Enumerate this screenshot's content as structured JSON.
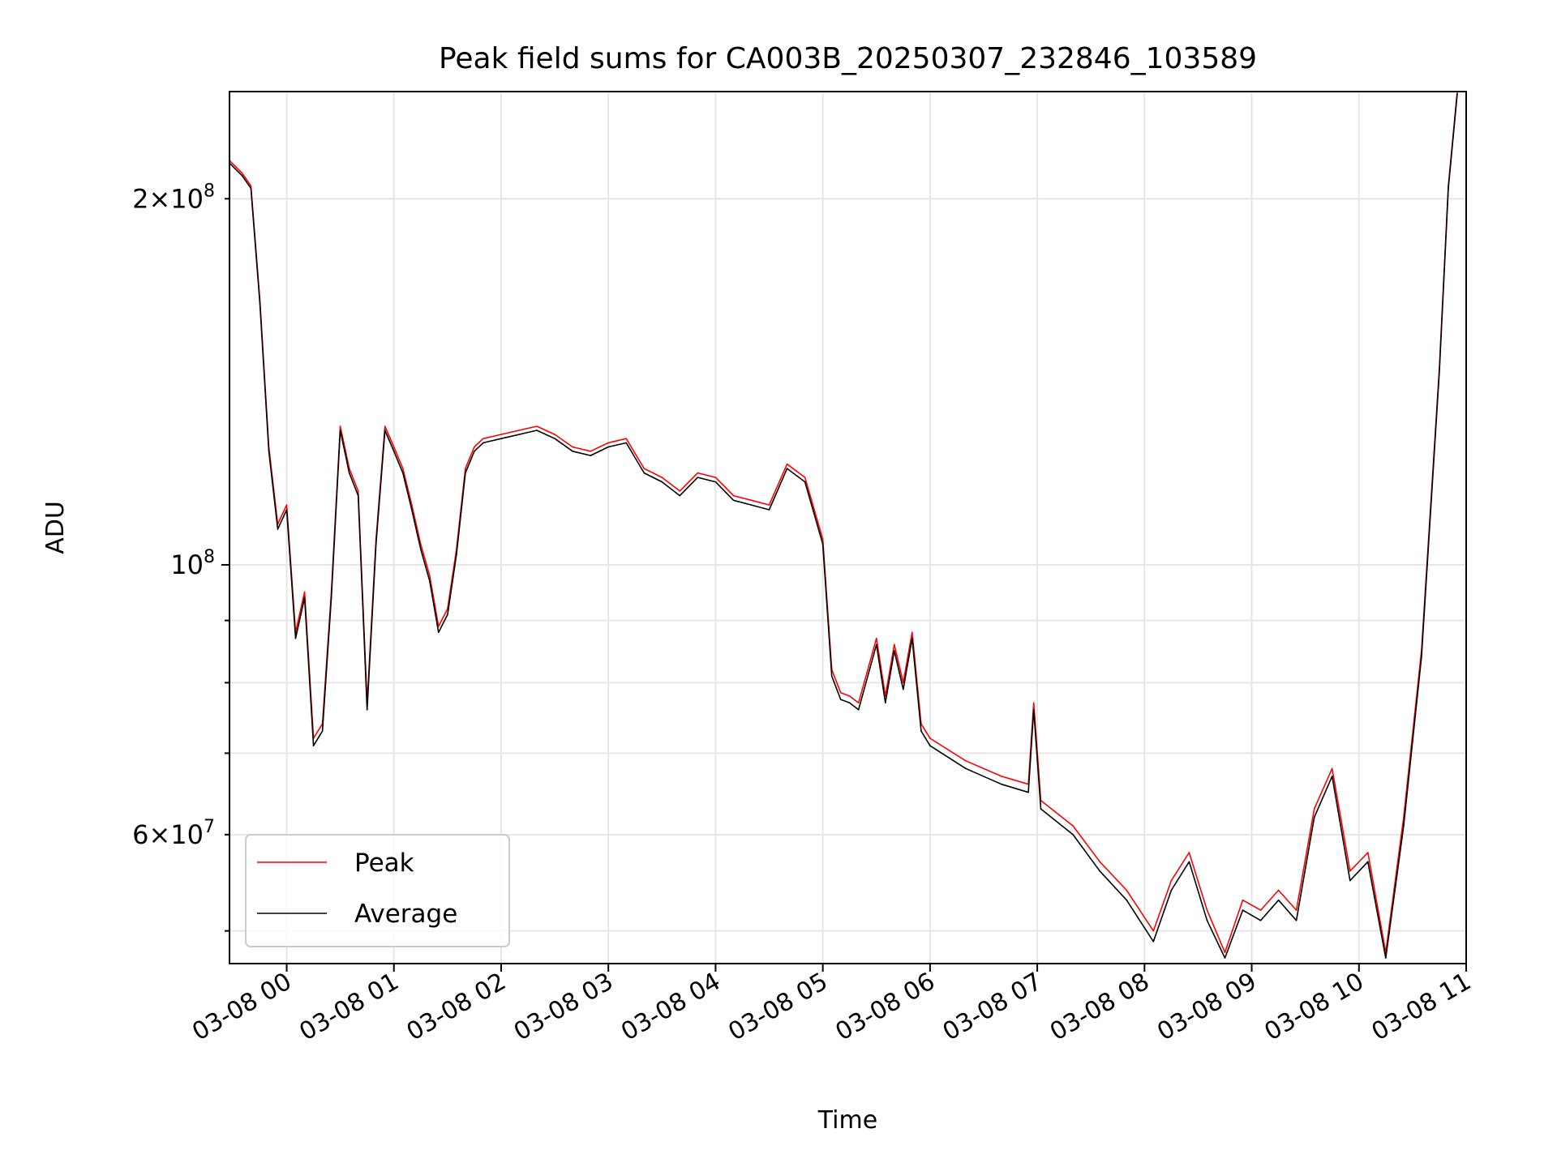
{
  "chart_data": {
    "type": "line",
    "title": "Peak field sums for CA003B_20250307_232846_103589",
    "xlabel": "Time",
    "ylabel": "ADU",
    "yscale": "log",
    "grid": true,
    "legend_position": "lower-left",
    "xlim": [
      "2025-03-07 23:28",
      "2025-03-08 11:00"
    ],
    "ylim": [
      47000000,
      245000000
    ],
    "x_ticks": [
      "03-08 00",
      "03-08 01",
      "03-08 02",
      "03-08 03",
      "03-08 04",
      "03-08 05",
      "03-08 06",
      "03-08 07",
      "03-08 08",
      "03-08 09",
      "03-08 10",
      "03-08 11"
    ],
    "y_tick_labels": [
      {
        "value": 200000000,
        "mantissa": "2",
        "exponent": "8"
      },
      {
        "value": 100000000,
        "mantissa": "",
        "exponent": "8"
      },
      {
        "value": 60000000,
        "mantissa": "6",
        "exponent": "7"
      }
    ],
    "series": [
      {
        "name": "Peak",
        "color": "#ff0000",
        "x": [
          "2025-03-07 23:28",
          "2025-03-07 23:35",
          "2025-03-07 23:40",
          "2025-03-07 23:45",
          "2025-03-07 23:50",
          "2025-03-07 23:55",
          "2025-03-08 00:00",
          "2025-03-08 00:05",
          "2025-03-08 00:10",
          "2025-03-08 00:15",
          "2025-03-08 00:20",
          "2025-03-08 00:25",
          "2025-03-08 00:30",
          "2025-03-08 00:35",
          "2025-03-08 00:40",
          "2025-03-08 00:45",
          "2025-03-08 00:50",
          "2025-03-08 00:55",
          "2025-03-08 01:00",
          "2025-03-08 01:05",
          "2025-03-08 01:10",
          "2025-03-08 01:15",
          "2025-03-08 01:20",
          "2025-03-08 01:25",
          "2025-03-08 01:30",
          "2025-03-08 01:35",
          "2025-03-08 01:40",
          "2025-03-08 01:45",
          "2025-03-08 01:50",
          "2025-03-08 02:00",
          "2025-03-08 02:10",
          "2025-03-08 02:20",
          "2025-03-08 02:30",
          "2025-03-08 02:40",
          "2025-03-08 02:50",
          "2025-03-08 03:00",
          "2025-03-08 03:10",
          "2025-03-08 03:20",
          "2025-03-08 03:30",
          "2025-03-08 03:40",
          "2025-03-08 03:50",
          "2025-03-08 04:00",
          "2025-03-08 04:10",
          "2025-03-08 04:20",
          "2025-03-08 04:30",
          "2025-03-08 04:40",
          "2025-03-08 04:50",
          "2025-03-08 05:00",
          "2025-03-08 05:05",
          "2025-03-08 05:10",
          "2025-03-08 05:15",
          "2025-03-08 05:20",
          "2025-03-08 05:30",
          "2025-03-08 05:35",
          "2025-03-08 05:40",
          "2025-03-08 05:45",
          "2025-03-08 05:50",
          "2025-03-08 05:55",
          "2025-03-08 06:00",
          "2025-03-08 06:20",
          "2025-03-08 06:40",
          "2025-03-08 06:55",
          "2025-03-08 06:58",
          "2025-03-08 07:02",
          "2025-03-08 07:20",
          "2025-03-08 07:35",
          "2025-03-08 07:50",
          "2025-03-08 08:05",
          "2025-03-08 08:15",
          "2025-03-08 08:25",
          "2025-03-08 08:35",
          "2025-03-08 08:45",
          "2025-03-08 08:55",
          "2025-03-08 09:05",
          "2025-03-08 09:15",
          "2025-03-08 09:25",
          "2025-03-08 09:35",
          "2025-03-08 09:45",
          "2025-03-08 09:55",
          "2025-03-08 10:05",
          "2025-03-08 10:15",
          "2025-03-08 10:25",
          "2025-03-08 10:35",
          "2025-03-08 10:45",
          "2025-03-08 10:50",
          "2025-03-08 10:55"
        ],
        "values": [
          215000000,
          210000000,
          205000000,
          165000000,
          125000000,
          108000000,
          112000000,
          88000000,
          95000000,
          72000000,
          74000000,
          95000000,
          130000000,
          120000000,
          115000000,
          77000000,
          105000000,
          130000000,
          125000000,
          120000000,
          112000000,
          104000000,
          98000000,
          89000000,
          92000000,
          103000000,
          120000000,
          125000000,
          127000000,
          128000000,
          129000000,
          130000000,
          128000000,
          125000000,
          124000000,
          126000000,
          127000000,
          120000000,
          118000000,
          115000000,
          119000000,
          118000000,
          114000000,
          113000000,
          112000000,
          121000000,
          118000000,
          105000000,
          82000000,
          78500000,
          78000000,
          77000000,
          87000000,
          78000000,
          86000000,
          80000000,
          88000000,
          74000000,
          72000000,
          69000000,
          67000000,
          66000000,
          77000000,
          64000000,
          61000000,
          57000000,
          54000000,
          50000000,
          55000000,
          58000000,
          52000000,
          48000000,
          53000000,
          52000000,
          54000000,
          52000000,
          63000000,
          68000000,
          56000000,
          58000000,
          48000000,
          62000000,
          85000000,
          145000000,
          205000000,
          245000000
        ]
      },
      {
        "name": "Average",
        "color": "#000000",
        "x": [
          "2025-03-07 23:28",
          "2025-03-07 23:35",
          "2025-03-07 23:40",
          "2025-03-07 23:45",
          "2025-03-07 23:50",
          "2025-03-07 23:55",
          "2025-03-08 00:00",
          "2025-03-08 00:05",
          "2025-03-08 00:10",
          "2025-03-08 00:15",
          "2025-03-08 00:20",
          "2025-03-08 00:25",
          "2025-03-08 00:30",
          "2025-03-08 00:35",
          "2025-03-08 00:40",
          "2025-03-08 00:45",
          "2025-03-08 00:50",
          "2025-03-08 00:55",
          "2025-03-08 01:00",
          "2025-03-08 01:05",
          "2025-03-08 01:10",
          "2025-03-08 01:15",
          "2025-03-08 01:20",
          "2025-03-08 01:25",
          "2025-03-08 01:30",
          "2025-03-08 01:35",
          "2025-03-08 01:40",
          "2025-03-08 01:45",
          "2025-03-08 01:50",
          "2025-03-08 02:00",
          "2025-03-08 02:10",
          "2025-03-08 02:20",
          "2025-03-08 02:30",
          "2025-03-08 02:40",
          "2025-03-08 02:50",
          "2025-03-08 03:00",
          "2025-03-08 03:10",
          "2025-03-08 03:20",
          "2025-03-08 03:30",
          "2025-03-08 03:40",
          "2025-03-08 03:50",
          "2025-03-08 04:00",
          "2025-03-08 04:10",
          "2025-03-08 04:20",
          "2025-03-08 04:30",
          "2025-03-08 04:40",
          "2025-03-08 04:50",
          "2025-03-08 05:00",
          "2025-03-08 05:05",
          "2025-03-08 05:10",
          "2025-03-08 05:15",
          "2025-03-08 05:20",
          "2025-03-08 05:30",
          "2025-03-08 05:35",
          "2025-03-08 05:40",
          "2025-03-08 05:45",
          "2025-03-08 05:50",
          "2025-03-08 05:55",
          "2025-03-08 06:00",
          "2025-03-08 06:20",
          "2025-03-08 06:40",
          "2025-03-08 06:55",
          "2025-03-08 06:58",
          "2025-03-08 07:02",
          "2025-03-08 07:20",
          "2025-03-08 07:35",
          "2025-03-08 07:50",
          "2025-03-08 08:05",
          "2025-03-08 08:15",
          "2025-03-08 08:25",
          "2025-03-08 08:35",
          "2025-03-08 08:45",
          "2025-03-08 08:55",
          "2025-03-08 09:05",
          "2025-03-08 09:15",
          "2025-03-08 09:25",
          "2025-03-08 09:35",
          "2025-03-08 09:45",
          "2025-03-08 09:55",
          "2025-03-08 10:05",
          "2025-03-08 10:15",
          "2025-03-08 10:25",
          "2025-03-08 10:35",
          "2025-03-08 10:45",
          "2025-03-08 10:50",
          "2025-03-08 10:55"
        ],
        "values": [
          214000000,
          209000000,
          204000000,
          164000000,
          124000000,
          107000000,
          111000000,
          87000000,
          94000000,
          71000000,
          73000000,
          94000000,
          129000000,
          119000000,
          114000000,
          76000000,
          104000000,
          129000000,
          124000000,
          119000000,
          111000000,
          103000000,
          97000000,
          88000000,
          91000000,
          102000000,
          119000000,
          124000000,
          126000000,
          127000000,
          128000000,
          129000000,
          127000000,
          124000000,
          123000000,
          125000000,
          126000000,
          119000000,
          117000000,
          114000000,
          118000000,
          117000000,
          113000000,
          112000000,
          111000000,
          120000000,
          117000000,
          104000000,
          81000000,
          77500000,
          77000000,
          76000000,
          86000000,
          77000000,
          85000000,
          79000000,
          87000000,
          73000000,
          71000000,
          68000000,
          66000000,
          65000000,
          76000000,
          63000000,
          60000000,
          56000000,
          53000000,
          49000000,
          54000000,
          57000000,
          51000000,
          47500000,
          52000000,
          51000000,
          53000000,
          51000000,
          62000000,
          67000000,
          55000000,
          57000000,
          47500000,
          61000000,
          84000000,
          144000000,
          204000000,
          244000000
        ]
      }
    ]
  }
}
